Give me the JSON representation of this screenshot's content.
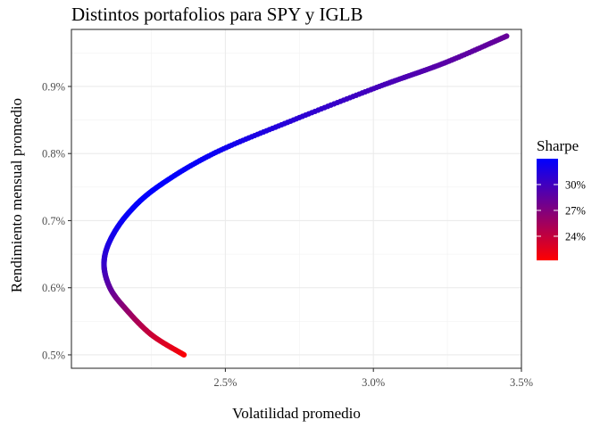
{
  "chart_data": {
    "type": "scatter",
    "title": "Distintos portafolios para SPY y IGLB",
    "xlabel": "Volatilidad promedio",
    "ylabel": "Rendimiento mensual promedio",
    "x_unit": "%",
    "y_unit": "%",
    "xlim": [
      1.98,
      3.5
    ],
    "ylim": [
      0.48,
      0.985
    ],
    "x_ticks": [
      2.5,
      3.0,
      3.5
    ],
    "x_tick_labels": [
      "2.5%",
      "3.0%",
      "3.5%"
    ],
    "y_ticks": [
      0.5,
      0.6,
      0.7,
      0.8,
      0.9
    ],
    "y_tick_labels": [
      "0.5%",
      "0.6%",
      "0.7%",
      "0.8%",
      "0.9%"
    ],
    "grid": true,
    "color_by": "Sharpe",
    "points": [
      {
        "x": 2.36,
        "y": 0.5,
        "sharpe": 21.2
      },
      {
        "x": 2.25,
        "y": 0.53,
        "sharpe": 23.6
      },
      {
        "x": 2.16,
        "y": 0.57,
        "sharpe": 26.4
      },
      {
        "x": 2.11,
        "y": 0.6,
        "sharpe": 28.4
      },
      {
        "x": 2.09,
        "y": 0.635,
        "sharpe": 30.4
      },
      {
        "x": 2.11,
        "y": 0.67,
        "sharpe": 31.8
      },
      {
        "x": 2.17,
        "y": 0.71,
        "sharpe": 32.7
      },
      {
        "x": 2.27,
        "y": 0.75,
        "sharpe": 33.0
      },
      {
        "x": 2.46,
        "y": 0.8,
        "sharpe": 32.5
      },
      {
        "x": 2.73,
        "y": 0.85,
        "sharpe": 31.1
      },
      {
        "x": 3.02,
        "y": 0.9,
        "sharpe": 29.8
      },
      {
        "x": 3.24,
        "y": 0.935,
        "sharpe": 28.9
      },
      {
        "x": 3.45,
        "y": 0.975,
        "sharpe": 28.3
      }
    ],
    "legend": {
      "title": "Sharpe",
      "position": "right",
      "breaks": [
        24,
        27,
        30
      ],
      "labels": [
        "24%",
        "27%",
        "30%"
      ],
      "range": [
        21.2,
        33.0
      ],
      "low_color": "#ff0000",
      "high_color": "#0000ff"
    }
  }
}
